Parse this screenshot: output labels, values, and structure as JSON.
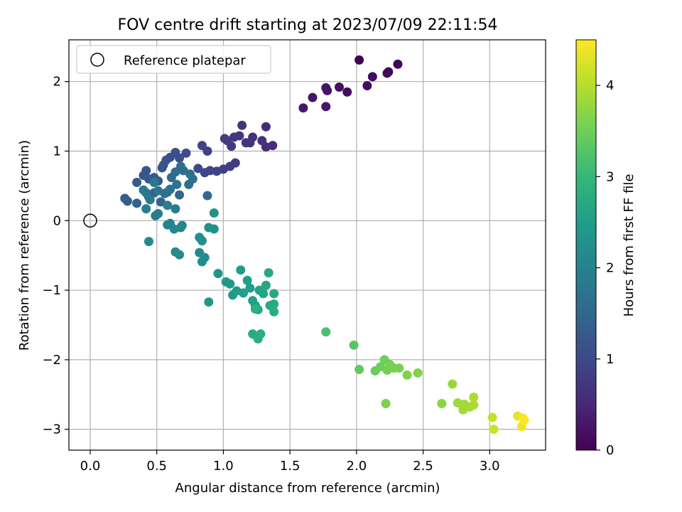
{
  "chart_data": {
    "type": "scatter",
    "title": "FOV centre drift starting at 2023/07/09 22:11:54",
    "xlabel": "Angular distance from reference (arcmin)",
    "ylabel": "Rotation from reference (arcmin)",
    "xlim": [
      -0.16,
      3.42
    ],
    "ylim": [
      -3.3,
      2.6
    ],
    "xticks": [
      0.0,
      0.5,
      1.0,
      1.5,
      2.0,
      2.5,
      3.0
    ],
    "xtick_labels": [
      "0.0",
      "0.5",
      "1.0",
      "1.5",
      "2.0",
      "2.5",
      "3.0"
    ],
    "yticks": [
      -3,
      -2,
      -1,
      0,
      1,
      2
    ],
    "ytick_labels": [
      "−3",
      "−2",
      "−1",
      "0",
      "1",
      "2"
    ],
    "grid": true,
    "legend": {
      "position": "top-left",
      "label": "Reference platepar"
    },
    "reference_point": {
      "x": 0.0,
      "y": 0.0
    },
    "colorbar": {
      "label": "Hours from first FF file",
      "range": [
        0,
        4.5
      ],
      "ticks": [
        0,
        1,
        2,
        3,
        4
      ],
      "tick_labels": [
        "0",
        "1",
        "2",
        "3",
        "4"
      ],
      "colormap": [
        "#440154",
        "#482878",
        "#3e4989",
        "#31688e",
        "#26828e",
        "#1f9e89",
        "#35b779",
        "#6ece58",
        "#b5de2b",
        "#fde725"
      ]
    },
    "points": [
      {
        "x": 2.02,
        "y": 2.31,
        "t": 0.0
      },
      {
        "x": 2.31,
        "y": 2.25,
        "t": 0.05
      },
      {
        "x": 2.24,
        "y": 2.14,
        "t": 0.08
      },
      {
        "x": 2.23,
        "y": 2.12,
        "t": 0.1
      },
      {
        "x": 2.12,
        "y": 2.07,
        "t": 0.12
      },
      {
        "x": 2.08,
        "y": 1.94,
        "t": 0.15
      },
      {
        "x": 1.93,
        "y": 1.85,
        "t": 0.18
      },
      {
        "x": 1.87,
        "y": 1.92,
        "t": 0.2
      },
      {
        "x": 1.78,
        "y": 1.87,
        "t": 0.22
      },
      {
        "x": 1.77,
        "y": 1.91,
        "t": 0.24
      },
      {
        "x": 1.67,
        "y": 1.77,
        "t": 0.26
      },
      {
        "x": 1.77,
        "y": 1.64,
        "t": 0.28
      },
      {
        "x": 1.6,
        "y": 1.62,
        "t": 0.3
      },
      {
        "x": 1.32,
        "y": 1.35,
        "t": 0.55
      },
      {
        "x": 1.37,
        "y": 1.08,
        "t": 0.58
      },
      {
        "x": 1.32,
        "y": 1.06,
        "t": 0.6
      },
      {
        "x": 1.29,
        "y": 1.15,
        "t": 0.62
      },
      {
        "x": 1.22,
        "y": 1.2,
        "t": 0.64
      },
      {
        "x": 1.2,
        "y": 1.12,
        "t": 0.66
      },
      {
        "x": 1.17,
        "y": 1.12,
        "t": 0.68
      },
      {
        "x": 1.14,
        "y": 1.37,
        "t": 0.7
      },
      {
        "x": 1.12,
        "y": 1.22,
        "t": 0.72
      },
      {
        "x": 1.08,
        "y": 1.2,
        "t": 0.74
      },
      {
        "x": 1.06,
        "y": 1.07,
        "t": 0.76
      },
      {
        "x": 1.03,
        "y": 1.15,
        "t": 0.78
      },
      {
        "x": 1.01,
        "y": 1.18,
        "t": 0.8
      },
      {
        "x": 1.09,
        "y": 0.83,
        "t": 0.82
      },
      {
        "x": 1.05,
        "y": 0.78,
        "t": 0.84
      },
      {
        "x": 1.0,
        "y": 0.74,
        "t": 0.86
      },
      {
        "x": 0.95,
        "y": 0.71,
        "t": 0.88
      },
      {
        "x": 0.88,
        "y": 1.0,
        "t": 0.9
      },
      {
        "x": 0.84,
        "y": 1.08,
        "t": 0.92
      },
      {
        "x": 0.9,
        "y": 0.72,
        "t": 0.94
      },
      {
        "x": 0.86,
        "y": 0.69,
        "t": 0.96
      },
      {
        "x": 0.81,
        "y": 0.75,
        "t": 0.98
      },
      {
        "x": 0.72,
        "y": 0.97,
        "t": 1.05
      },
      {
        "x": 0.67,
        "y": 0.9,
        "t": 1.08
      },
      {
        "x": 0.64,
        "y": 0.98,
        "t": 1.1
      },
      {
        "x": 0.6,
        "y": 0.91,
        "t": 1.12
      },
      {
        "x": 0.57,
        "y": 0.87,
        "t": 1.14
      },
      {
        "x": 0.55,
        "y": 0.8,
        "t": 1.16
      },
      {
        "x": 0.54,
        "y": 0.76,
        "t": 1.18
      },
      {
        "x": 0.42,
        "y": 0.72,
        "t": 1.2
      },
      {
        "x": 0.4,
        "y": 0.65,
        "t": 1.22
      },
      {
        "x": 0.44,
        "y": 0.6,
        "t": 1.24
      },
      {
        "x": 0.48,
        "y": 0.62,
        "t": 1.26
      },
      {
        "x": 0.51,
        "y": 0.57,
        "t": 1.28
      },
      {
        "x": 0.35,
        "y": 0.55,
        "t": 1.3
      },
      {
        "x": 0.26,
        "y": 0.32,
        "t": 1.32
      },
      {
        "x": 0.28,
        "y": 0.28,
        "t": 1.34
      },
      {
        "x": 0.35,
        "y": 0.25,
        "t": 1.36
      },
      {
        "x": 0.44,
        "y": 0.34,
        "t": 1.38
      },
      {
        "x": 0.48,
        "y": 0.4,
        "t": 1.4
      },
      {
        "x": 0.53,
        "y": 0.27,
        "t": 1.42
      },
      {
        "x": 0.58,
        "y": 0.41,
        "t": 1.44
      },
      {
        "x": 0.6,
        "y": 0.45,
        "t": 1.46
      },
      {
        "x": 0.67,
        "y": 0.37,
        "t": 1.48
      },
      {
        "x": 0.88,
        "y": 0.36,
        "t": 1.5
      },
      {
        "x": 0.61,
        "y": 0.62,
        "t": 1.55
      },
      {
        "x": 0.64,
        "y": 0.7,
        "t": 1.58
      },
      {
        "x": 0.68,
        "y": 0.78,
        "t": 1.6
      },
      {
        "x": 0.7,
        "y": 0.72,
        "t": 1.62
      },
      {
        "x": 0.75,
        "y": 0.67,
        "t": 1.64
      },
      {
        "x": 0.77,
        "y": 0.6,
        "t": 1.66
      },
      {
        "x": 0.74,
        "y": 0.52,
        "t": 1.68
      },
      {
        "x": 0.65,
        "y": 0.52,
        "t": 1.7
      },
      {
        "x": 0.6,
        "y": 0.45,
        "t": 1.72
      },
      {
        "x": 0.56,
        "y": 0.39,
        "t": 1.74
      },
      {
        "x": 0.51,
        "y": 0.43,
        "t": 1.76
      },
      {
        "x": 0.48,
        "y": 0.55,
        "t": 1.78
      },
      {
        "x": 0.42,
        "y": 0.4,
        "t": 1.8
      },
      {
        "x": 0.4,
        "y": 0.44,
        "t": 1.82
      },
      {
        "x": 0.45,
        "y": 0.3,
        "t": 1.84
      },
      {
        "x": 0.49,
        "y": 0.07,
        "t": 1.86
      },
      {
        "x": 0.51,
        "y": 0.1,
        "t": 1.88
      },
      {
        "x": 0.42,
        "y": 0.17,
        "t": 1.9
      },
      {
        "x": 0.64,
        "y": 0.17,
        "t": 1.92
      },
      {
        "x": 0.58,
        "y": 0.22,
        "t": 1.94
      },
      {
        "x": 0.6,
        "y": -0.04,
        "t": 2.0
      },
      {
        "x": 0.58,
        "y": -0.06,
        "t": 2.02
      },
      {
        "x": 0.63,
        "y": -0.12,
        "t": 2.04
      },
      {
        "x": 0.68,
        "y": -0.1,
        "t": 2.06
      },
      {
        "x": 0.69,
        "y": -0.07,
        "t": 2.08
      },
      {
        "x": 0.44,
        "y": -0.3,
        "t": 2.1
      },
      {
        "x": 0.64,
        "y": -0.45,
        "t": 2.12
      },
      {
        "x": 0.67,
        "y": -0.49,
        "t": 2.14
      },
      {
        "x": 0.82,
        "y": -0.46,
        "t": 2.16
      },
      {
        "x": 0.86,
        "y": -0.53,
        "t": 2.18
      },
      {
        "x": 0.84,
        "y": -0.59,
        "t": 2.2
      },
      {
        "x": 0.82,
        "y": -0.24,
        "t": 2.22
      },
      {
        "x": 0.84,
        "y": -0.29,
        "t": 2.24
      },
      {
        "x": 0.89,
        "y": -0.1,
        "t": 2.26
      },
      {
        "x": 0.93,
        "y": -0.12,
        "t": 2.28
      },
      {
        "x": 0.93,
        "y": 0.11,
        "t": 2.3
      },
      {
        "x": 0.89,
        "y": -1.17,
        "t": 2.35
      },
      {
        "x": 0.96,
        "y": -0.76,
        "t": 2.38
      },
      {
        "x": 1.02,
        "y": -0.88,
        "t": 2.4
      },
      {
        "x": 1.05,
        "y": -0.91,
        "t": 2.42
      },
      {
        "x": 1.07,
        "y": -1.07,
        "t": 2.44
      },
      {
        "x": 1.1,
        "y": -1.01,
        "t": 2.46
      },
      {
        "x": 1.13,
        "y": -0.71,
        "t": 2.48
      },
      {
        "x": 1.15,
        "y": -1.04,
        "t": 2.5
      },
      {
        "x": 1.18,
        "y": -0.86,
        "t": 2.52
      },
      {
        "x": 1.2,
        "y": -0.97,
        "t": 2.54
      },
      {
        "x": 1.22,
        "y": -1.15,
        "t": 2.56
      },
      {
        "x": 1.24,
        "y": -1.22,
        "t": 2.58
      },
      {
        "x": 1.26,
        "y": -1.28,
        "t": 2.6
      },
      {
        "x": 1.27,
        "y": -1.0,
        "t": 2.62
      },
      {
        "x": 1.3,
        "y": -1.05,
        "t": 2.64
      },
      {
        "x": 1.32,
        "y": -0.93,
        "t": 2.66
      },
      {
        "x": 1.34,
        "y": -0.75,
        "t": 2.68
      },
      {
        "x": 1.35,
        "y": -1.22,
        "t": 2.7
      },
      {
        "x": 1.38,
        "y": -1.05,
        "t": 2.72
      },
      {
        "x": 1.38,
        "y": -1.2,
        "t": 2.74
      },
      {
        "x": 1.38,
        "y": -1.31,
        "t": 2.76
      },
      {
        "x": 1.22,
        "y": -1.63,
        "t": 2.78
      },
      {
        "x": 1.26,
        "y": -1.7,
        "t": 2.8
      },
      {
        "x": 1.28,
        "y": -1.63,
        "t": 2.82
      },
      {
        "x": 1.24,
        "y": -1.27,
        "t": 2.84
      },
      {
        "x": 1.77,
        "y": -1.6,
        "t": 3.2
      },
      {
        "x": 1.98,
        "y": -1.79,
        "t": 3.3
      },
      {
        "x": 2.02,
        "y": -2.14,
        "t": 3.4
      },
      {
        "x": 2.14,
        "y": -2.16,
        "t": 3.45
      },
      {
        "x": 2.18,
        "y": -2.1,
        "t": 3.48
      },
      {
        "x": 2.21,
        "y": -2.0,
        "t": 3.5
      },
      {
        "x": 2.23,
        "y": -2.15,
        "t": 3.52
      },
      {
        "x": 2.25,
        "y": -2.07,
        "t": 3.54
      },
      {
        "x": 2.28,
        "y": -2.12,
        "t": 3.56
      },
      {
        "x": 2.32,
        "y": -2.12,
        "t": 3.58
      },
      {
        "x": 2.22,
        "y": -2.63,
        "t": 3.6
      },
      {
        "x": 2.38,
        "y": -2.22,
        "t": 3.62
      },
      {
        "x": 2.46,
        "y": -2.19,
        "t": 3.64
      },
      {
        "x": 2.64,
        "y": -2.63,
        "t": 3.7
      },
      {
        "x": 2.72,
        "y": -2.35,
        "t": 3.8
      },
      {
        "x": 2.76,
        "y": -2.62,
        "t": 3.84
      },
      {
        "x": 2.8,
        "y": -2.72,
        "t": 3.86
      },
      {
        "x": 2.81,
        "y": -2.64,
        "t": 3.88
      },
      {
        "x": 2.85,
        "y": -2.68,
        "t": 3.9
      },
      {
        "x": 2.88,
        "y": -2.65,
        "t": 3.92
      },
      {
        "x": 2.88,
        "y": -2.54,
        "t": 3.94
      },
      {
        "x": 3.02,
        "y": -2.83,
        "t": 4.1
      },
      {
        "x": 3.03,
        "y": -3.0,
        "t": 4.15
      },
      {
        "x": 3.21,
        "y": -2.81,
        "t": 4.35
      },
      {
        "x": 3.24,
        "y": -2.96,
        "t": 4.4
      },
      {
        "x": 3.25,
        "y": -2.84,
        "t": 4.45
      },
      {
        "x": 3.26,
        "y": -2.87,
        "t": 4.48
      }
    ]
  }
}
